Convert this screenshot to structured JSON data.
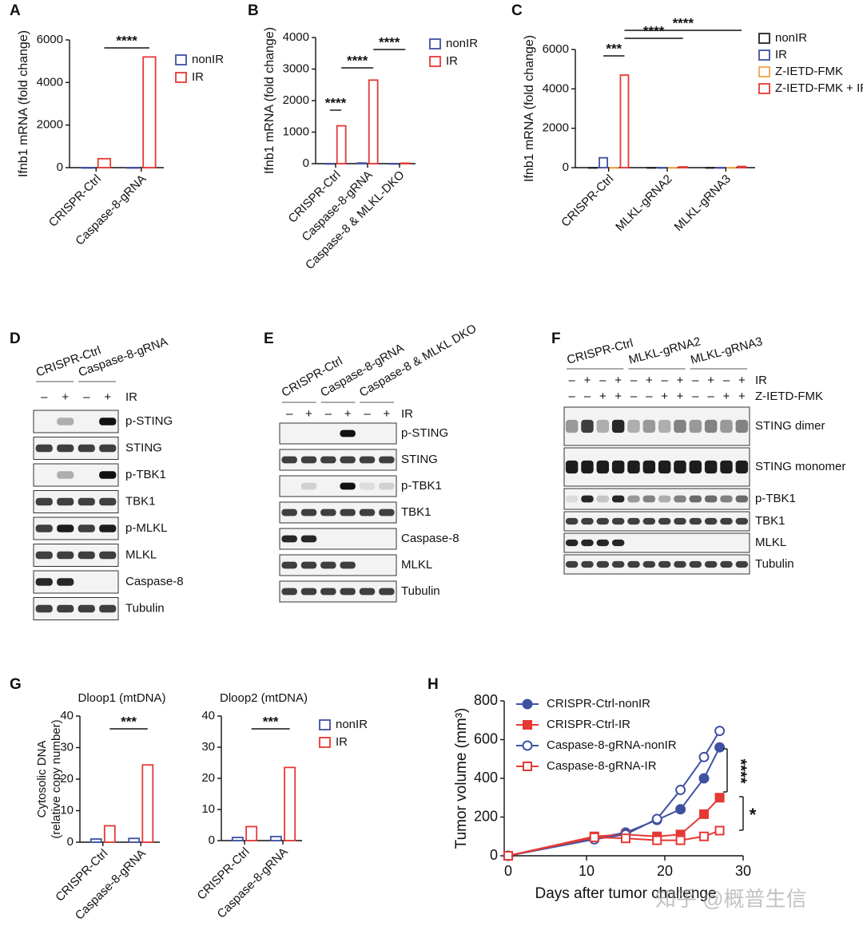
{
  "panel_labels": [
    "A",
    "B",
    "C",
    "D",
    "E",
    "F",
    "G",
    "H"
  ],
  "watermark": "知乎 @概普生信",
  "chart_data": [
    {
      "type": "bar",
      "ylabel": "Ifnb1 mRNA (fold change)",
      "categories": [
        "CRISPR-Ctrl",
        "Caspase-8-gRNA"
      ],
      "series": [
        {
          "name": "nonIR",
          "color": "#3f51a3",
          "values": [
            1,
            1
          ]
        },
        {
          "name": "IR",
          "color": "#e53935",
          "values": [
            420,
            5200
          ]
        }
      ],
      "ylim": [
        0,
        6000
      ],
      "yticks": [
        0,
        2000,
        4000,
        6000
      ],
      "annotations": [
        "****"
      ]
    },
    {
      "type": "bar",
      "ylabel": "Ifnb1 mRNA (fold change)",
      "categories": [
        "CRISPR-Ctrl",
        "Caspase-8-gRNA",
        "Caspase-8 & MLKL-DKO"
      ],
      "series": [
        {
          "name": "nonIR",
          "color": "#3f51a3",
          "values": [
            1,
            20,
            1
          ]
        },
        {
          "name": "IR",
          "color": "#e53935",
          "values": [
            1200,
            2650,
            15
          ]
        }
      ],
      "ylim": [
        0,
        4000
      ],
      "yticks": [
        0,
        1000,
        2000,
        3000,
        4000
      ],
      "annotations": [
        "****",
        "****",
        "****"
      ]
    },
    {
      "type": "bar",
      "ylabel": "Ifnb1 mRNA (fold change)",
      "categories": [
        "CRISPR-Ctrl",
        "MLKL-gRNA2",
        "MLKL-gRNA3"
      ],
      "series": [
        {
          "name": "nonIR",
          "color": "#222222",
          "values": [
            1,
            1,
            1
          ]
        },
        {
          "name": "IR",
          "color": "#3f51a3",
          "values": [
            500,
            1,
            1
          ]
        },
        {
          "name": "Z-IETD-FMK",
          "color": "#f0a64a",
          "values": [
            1,
            1,
            1
          ]
        },
        {
          "name": "Z-IETD-FMK + IR",
          "color": "#e53935",
          "values": [
            4700,
            40,
            60
          ]
        }
      ],
      "ylim": [
        0,
        6000
      ],
      "yticks": [
        0,
        2000,
        4000,
        6000
      ],
      "annotations": [
        "***",
        "****",
        "****"
      ]
    },
    {
      "type": "bar",
      "title": "Dloop1 (mtDNA)",
      "ylabel": [
        "Cytosolic DNA",
        "(relative copy number)"
      ],
      "categories": [
        "CRISPR-Ctrl",
        "Caspase-8-gRNA"
      ],
      "series": [
        {
          "name": "nonIR",
          "color": "#3f51a3",
          "values": [
            1,
            1.2
          ]
        },
        {
          "name": "IR",
          "color": "#e53935",
          "values": [
            5.2,
            24.5
          ]
        }
      ],
      "ylim": [
        0,
        40
      ],
      "yticks": [
        0,
        10,
        20,
        30,
        40
      ],
      "annotations": [
        "***"
      ]
    },
    {
      "type": "bar",
      "title": "Dloop2 (mtDNA)",
      "categories": [
        "CRISPR-Ctrl",
        "Caspase-8-gRNA"
      ],
      "series": [
        {
          "name": "nonIR",
          "color": "#3f51a3",
          "values": [
            1,
            1.3
          ]
        },
        {
          "name": "IR",
          "color": "#e53935",
          "values": [
            4.5,
            23.5
          ]
        }
      ],
      "ylim": [
        0,
        40
      ],
      "yticks": [
        0,
        10,
        20,
        30,
        40
      ],
      "annotations": [
        "***"
      ]
    },
    {
      "type": "line",
      "xlabel": "Days after tumor challenge",
      "ylabel": "Tumor volume (mm³)",
      "x": [
        0,
        11,
        15,
        19,
        22,
        25,
        27
      ],
      "series": [
        {
          "name": "CRISPR-Ctrl-nonIR",
          "color": "#3f51a3",
          "marker": "circle",
          "filled": true,
          "values": [
            0,
            90,
            120,
            185,
            240,
            400,
            560
          ]
        },
        {
          "name": "CRISPR-Ctrl-IR",
          "color": "#e53935",
          "marker": "square",
          "filled": true,
          "values": [
            0,
            100,
            110,
            100,
            110,
            215,
            300
          ]
        },
        {
          "name": "Caspase-8-gRNA-nonIR",
          "color": "#3f51a3",
          "marker": "circle",
          "filled": false,
          "values": [
            0,
            85,
            110,
            190,
            340,
            510,
            645
          ]
        },
        {
          "name": "Caspase-8-gRNA-IR",
          "color": "#e53935",
          "marker": "square",
          "filled": false,
          "values": [
            0,
            95,
            90,
            80,
            80,
            100,
            130
          ]
        }
      ],
      "xlim": [
        0,
        30
      ],
      "xticks": [
        0,
        10,
        20,
        30
      ],
      "ylim": [
        0,
        800
      ],
      "yticks": [
        0,
        200,
        400,
        600,
        800
      ],
      "annotations": [
        "****",
        "*"
      ]
    }
  ],
  "blots": [
    {
      "groups": [
        "CRISPR-Ctrl",
        "Caspase-8-gRNA"
      ],
      "treatments": [
        {
          "name": "IR",
          "signs": [
            "–",
            "+",
            "–",
            "+"
          ]
        }
      ],
      "rows": [
        "p-STING",
        "STING",
        "p-TBK1",
        "TBK1",
        "p-MLKL",
        "MLKL",
        "Caspase-8",
        "Tubulin"
      ]
    },
    {
      "groups": [
        "CRISPR-Ctrl",
        "Caspase-8-gRNA",
        "Caspase-8 & MLKL DKO"
      ],
      "treatments": [
        {
          "name": "IR",
          "signs": [
            "–",
            "+",
            "–",
            "+",
            "–",
            "+"
          ]
        }
      ],
      "rows": [
        "p-STING",
        "STING",
        "p-TBK1",
        "TBK1",
        "Caspase-8",
        "MLKL",
        "Tubulin"
      ]
    },
    {
      "groups": [
        "CRISPR-Ctrl",
        "MLKL-gRNA2",
        "MLKL-gRNA3"
      ],
      "treatments": [
        {
          "name": "IR",
          "signs": [
            "–",
            "+",
            "–",
            "+",
            "–",
            "+",
            "–",
            "+",
            "–",
            "+",
            "–",
            "+"
          ]
        },
        {
          "name": "Z-IETD-FMK",
          "signs": [
            "–",
            "–",
            "+",
            "+",
            "–",
            "–",
            "+",
            "+",
            "–",
            "–",
            "+",
            "+"
          ]
        }
      ],
      "rows": [
        "STING dimer",
        "STING monomer",
        "p-TBK1",
        "TBK1",
        "MLKL",
        "Tubulin"
      ]
    }
  ]
}
